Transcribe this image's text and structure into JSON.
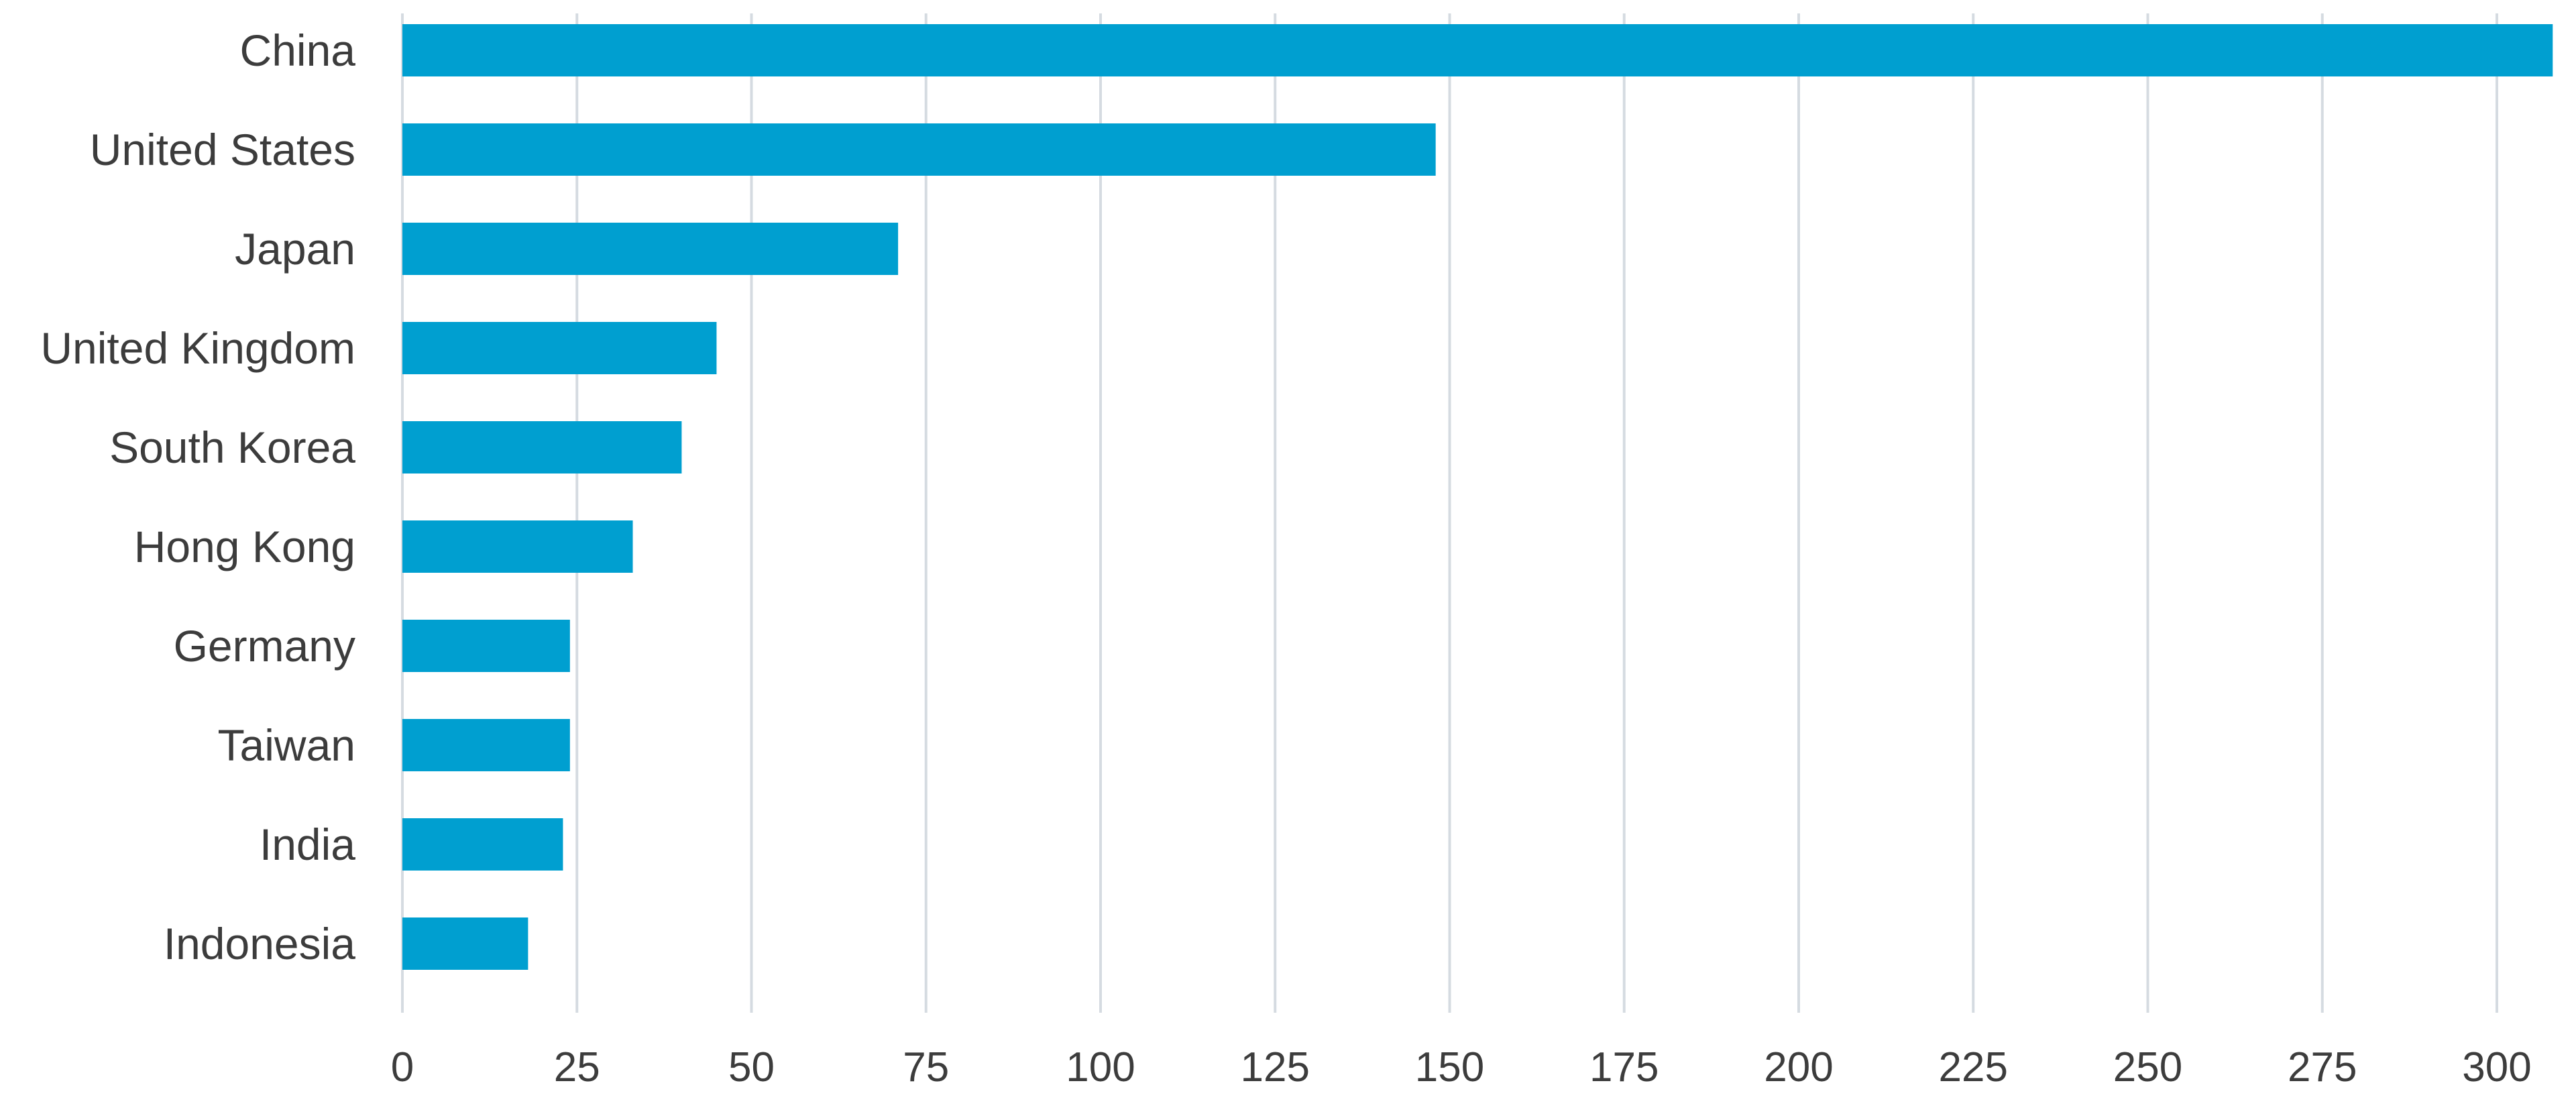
{
  "chart_data": {
    "type": "bar",
    "orientation": "horizontal",
    "title": "",
    "xlabel": "",
    "ylabel": "",
    "categories": [
      "China",
      "United States",
      "Japan",
      "United Kingdom",
      "South Korea",
      "Hong Kong",
      "Germany",
      "Taiwan",
      "India",
      "Indonesia"
    ],
    "values": [
      308,
      148,
      71,
      45,
      40,
      33,
      24,
      24,
      23,
      18
    ],
    "xlim": [
      0,
      308
    ],
    "xticks": [
      0,
      25,
      50,
      75,
      100,
      125,
      150,
      175,
      200,
      225,
      250,
      275,
      300
    ],
    "grid": "vertical",
    "legend": "none",
    "bar_color": "#009fd0",
    "grid_color": "#d5dbe1"
  }
}
